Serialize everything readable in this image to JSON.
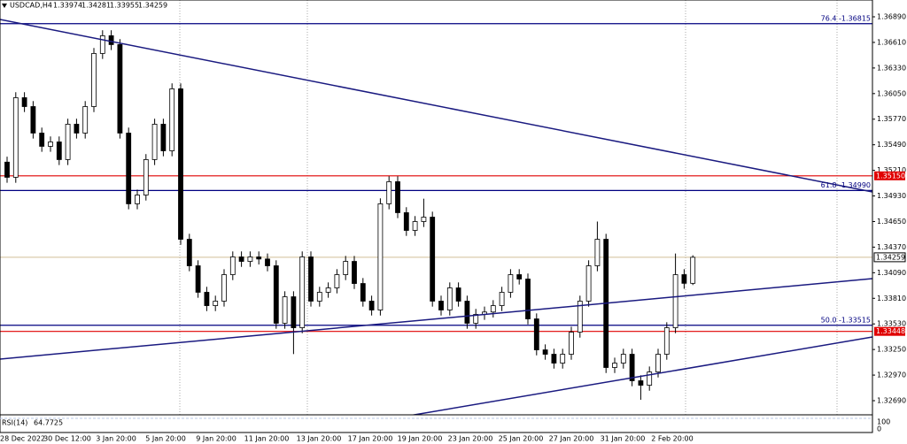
{
  "chart_data": {
    "type": "candlestick",
    "title": "USDCAD,H4",
    "open": [
      1.353,
      1.35134,
      1.36005,
      1.35908,
      1.35618,
      1.35473,
      1.35521,
      1.35328,
      1.35715,
      1.35618,
      1.35908,
      1.36489,
      1.36683,
      1.36586,
      1.35618,
      1.34844,
      1.3494,
      1.35328,
      1.35715,
      1.35424,
      1.36102,
      1.34456,
      1.34166,
      1.33876,
      1.3373,
      1.33779,
      1.34069,
      1.34263,
      1.34214,
      1.34263,
      1.3424,
      1.34166,
      1.33537,
      1.33827,
      1.33488,
      1.34263,
      1.33779,
      1.33876,
      1.33924,
      1.34069,
      1.34214,
      1.33972,
      1.33779,
      1.33682,
      1.34844,
      1.35086,
      1.34747,
      1.34553,
      1.3465,
      1.34698,
      1.33779,
      1.33682,
      1.33924,
      1.33779,
      1.33537,
      1.33634,
      1.3366,
      1.3373,
      1.33876,
      1.34069,
      1.34021,
      1.33585,
      1.33246,
      1.33198,
      1.33101,
      1.33198,
      1.3344,
      1.33779,
      1.34166,
      1.34456,
      1.33053,
      1.33101,
      1.33198,
      1.32908,
      1.32859,
      1.33004,
      1.33198,
      1.33488,
      1.34069,
      1.33974
    ],
    "high": [
      1.3536,
      1.36065,
      1.36065,
      1.35968,
      1.35678,
      1.35581,
      1.35581,
      1.35775,
      1.35775,
      1.35968,
      1.36549,
      1.36743,
      1.36743,
      1.36646,
      1.35678,
      1.35,
      1.35388,
      1.35775,
      1.35775,
      1.36162,
      1.36162,
      1.34516,
      1.34226,
      1.33936,
      1.33839,
      1.34129,
      1.34323,
      1.34323,
      1.34323,
      1.34323,
      1.343,
      1.34226,
      1.33887,
      1.33887,
      1.34323,
      1.34323,
      1.33936,
      1.33984,
      1.34129,
      1.34274,
      1.34274,
      1.34032,
      1.33839,
      1.34904,
      1.35146,
      1.35146,
      1.34807,
      1.3471,
      1.349,
      1.34758,
      1.33839,
      1.33984,
      1.33984,
      1.33839,
      1.33694,
      1.3372,
      1.3379,
      1.33936,
      1.34129,
      1.34129,
      1.34081,
      1.33645,
      1.33306,
      1.33258,
      1.33258,
      1.335,
      1.33839,
      1.34226,
      1.3465,
      1.34516,
      1.33161,
      1.33258,
      1.33258,
      1.32968,
      1.33064,
      1.33258,
      1.33548,
      1.343,
      1.34129,
      1.34281
    ],
    "low": [
      1.35074,
      1.35074,
      1.35848,
      1.35558,
      1.35413,
      1.35413,
      1.35268,
      1.35268,
      1.35558,
      1.35558,
      1.35848,
      1.36429,
      1.36526,
      1.35558,
      1.34784,
      1.34784,
      1.3488,
      1.35268,
      1.35364,
      1.35364,
      1.34396,
      1.34106,
      1.33816,
      1.3367,
      1.3367,
      1.33719,
      1.34009,
      1.34154,
      1.34154,
      1.3418,
      1.34106,
      1.33477,
      1.33477,
      1.332,
      1.33428,
      1.33719,
      1.33719,
      1.33816,
      1.33864,
      1.34009,
      1.33912,
      1.33719,
      1.33622,
      1.33622,
      1.34784,
      1.34687,
      1.34493,
      1.34493,
      1.3459,
      1.33719,
      1.33622,
      1.33622,
      1.33719,
      1.33477,
      1.33477,
      1.33574,
      1.336,
      1.3367,
      1.33816,
      1.33961,
      1.33525,
      1.33186,
      1.33138,
      1.33041,
      1.33041,
      1.33138,
      1.3338,
      1.33719,
      1.34106,
      1.32993,
      1.32993,
      1.33041,
      1.32848,
      1.327,
      1.32799,
      1.32944,
      1.33138,
      1.33428,
      1.33914,
      1.33955
    ],
    "close": [
      1.35134,
      1.36005,
      1.35908,
      1.35618,
      1.35473,
      1.35521,
      1.35328,
      1.35715,
      1.35618,
      1.35908,
      1.36489,
      1.36683,
      1.36586,
      1.35618,
      1.34844,
      1.3494,
      1.35328,
      1.35715,
      1.35424,
      1.36102,
      1.34456,
      1.34166,
      1.33876,
      1.3373,
      1.33779,
      1.34069,
      1.34263,
      1.34214,
      1.34263,
      1.3424,
      1.34166,
      1.33537,
      1.33827,
      1.33488,
      1.34263,
      1.33779,
      1.33876,
      1.33924,
      1.34069,
      1.34214,
      1.33972,
      1.33779,
      1.33682,
      1.34844,
      1.35086,
      1.34747,
      1.34553,
      1.3465,
      1.34698,
      1.33779,
      1.33682,
      1.33924,
      1.33779,
      1.33537,
      1.33634,
      1.3366,
      1.3373,
      1.33876,
      1.34069,
      1.34021,
      1.33585,
      1.33246,
      1.33198,
      1.33101,
      1.33198,
      1.3344,
      1.33779,
      1.34166,
      1.34456,
      1.33053,
      1.33101,
      1.33198,
      1.32908,
      1.32859,
      1.33004,
      1.33198,
      1.33488,
      1.34069,
      1.33974,
      1.34259
    ],
    "up_color": "#ffffff",
    "down_color": "#000000",
    "ylim": [
      1.32545,
      1.37074
    ],
    "yticks": [
      {
        "value": 1.3689,
        "label": "1.36890"
      },
      {
        "value": 1.3661,
        "label": "1.36610"
      },
      {
        "value": 1.3633,
        "label": "1.36330"
      },
      {
        "value": 1.3605,
        "label": "1.36050"
      },
      {
        "value": 1.3577,
        "label": "1.35770"
      },
      {
        "value": 1.3549,
        "label": "1.35490"
      },
      {
        "value": 1.3521,
        "label": "1.35210"
      },
      {
        "value": 1.3493,
        "label": "1.34930"
      },
      {
        "value": 1.3465,
        "label": "1.34650"
      },
      {
        "value": 1.3437,
        "label": "1.34370"
      },
      {
        "value": 1.3409,
        "label": "1.34090"
      },
      {
        "value": 1.3381,
        "label": "1.33810"
      },
      {
        "value": 1.3353,
        "label": "1.33530"
      },
      {
        "value": 1.3325,
        "label": "1.33250"
      },
      {
        "value": 1.3297,
        "label": "1.32970"
      },
      {
        "value": 1.3269,
        "label": "1.32690"
      }
    ],
    "xlabels": [
      "28 Dec 2022",
      "30 Dec 12:00",
      "3 Jan 20:00",
      "5 Jan 20:00",
      "9 Jan 20:00",
      "11 Jan 20:00",
      "13 Jan 20:00",
      "17 Jan 20:00",
      "19 Jan 20:00",
      "23 Jan 20:00",
      "25 Jan 20:00",
      "27 Jan 20:00",
      "31 Jan 20:00",
      "2 Feb 20:00"
    ],
    "fib_levels": [
      {
        "label": "76.4 -1.36815",
        "value": 1.36815
      },
      {
        "label": "61.8 -1.34990",
        "value": 1.3499
      },
      {
        "label": "50.0 -1.33515",
        "value": 1.33515
      }
    ],
    "fib_color": "#000080",
    "alert_levels": [
      {
        "value": 1.3515,
        "label": "1.35150"
      },
      {
        "value": 1.33448,
        "label": "1.33448"
      }
    ],
    "alert_color": "#e00000",
    "price_line_color": "#d2bf96",
    "rsi": {
      "name": "RSI(14)",
      "value": 64.7725,
      "yticks": [
        100,
        0
      ]
    }
  }
}
